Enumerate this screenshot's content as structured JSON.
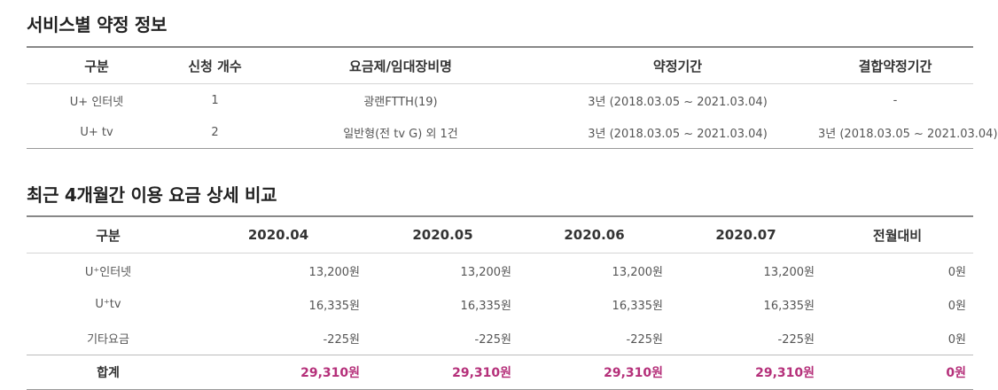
{
  "contract_section": {
    "title": "서비스별 약정 정보",
    "headers": [
      "구분",
      "신청 개수",
      "요금제/임대장비명",
      "약정기간",
      "결합약정기간"
    ],
    "rows": [
      [
        "U+ 인터넷",
        "1",
        "광랜FTTH(19)",
        "3년 (2018.03.05 ~ 2021.03.04)",
        "-"
      ],
      [
        "U+ tv",
        "2",
        "일반형(전 tv G) 외 1건",
        "3년 (2018.03.05 ~ 2021.03.04)",
        "3년 (2018.03.05 ~ 2021.03.04)"
      ]
    ]
  },
  "fee_section": {
    "title": "최근 4개월간 이용 요금 상세 비교",
    "headers": [
      "구분",
      "2020.04",
      "2020.05",
      "2020.06",
      "2020.07",
      "전월대비"
    ],
    "rows": [
      [
        "U⁺인터넷",
        "13,200원",
        "13,200원",
        "13,200원",
        "13,200원",
        "0원"
      ],
      [
        "U⁺tv",
        "16,335원",
        "16,335원",
        "16,335원",
        "16,335원",
        "0원"
      ],
      [
        "기타요금",
        "-225원",
        "-225원",
        "-225원",
        "-225원",
        "0원"
      ]
    ],
    "total": [
      "합계",
      "29,310원",
      "29,310원",
      "29,310원",
      "29,310원",
      "0원"
    ]
  },
  "colors": {
    "accent_total": "#b5307a",
    "rule": "#888888"
  }
}
